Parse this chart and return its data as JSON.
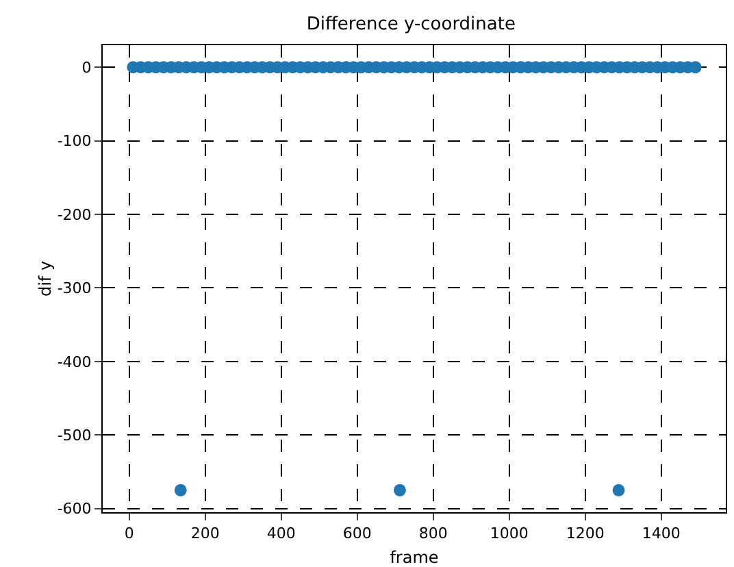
{
  "chart_data": {
    "type": "scatter",
    "title": "Difference y-coordinate",
    "xlabel": "frame",
    "ylabel": "dif y",
    "x": [
      10,
      30,
      50,
      70,
      90,
      110,
      130,
      135,
      150,
      170,
      190,
      210,
      230,
      250,
      270,
      290,
      310,
      330,
      350,
      370,
      390,
      410,
      430,
      450,
      470,
      490,
      510,
      530,
      550,
      570,
      590,
      610,
      630,
      650,
      670,
      690,
      710,
      712,
      730,
      750,
      770,
      790,
      810,
      830,
      850,
      870,
      890,
      910,
      930,
      950,
      970,
      990,
      1010,
      1030,
      1050,
      1070,
      1090,
      1110,
      1130,
      1150,
      1170,
      1190,
      1210,
      1230,
      1250,
      1270,
      1288,
      1290,
      1310,
      1330,
      1350,
      1370,
      1390,
      1410,
      1430,
      1450,
      1470,
      1490
    ],
    "values": [
      0,
      0,
      0,
      0,
      0,
      0,
      0,
      -575,
      0,
      0,
      0,
      0,
      0,
      0,
      0,
      0,
      0,
      0,
      0,
      0,
      0,
      0,
      0,
      0,
      0,
      0,
      0,
      0,
      0,
      0,
      0,
      0,
      0,
      0,
      0,
      0,
      0,
      -575,
      0,
      0,
      0,
      0,
      0,
      0,
      0,
      0,
      0,
      0,
      0,
      0,
      0,
      0,
      0,
      0,
      0,
      0,
      0,
      0,
      0,
      0,
      0,
      0,
      0,
      0,
      0,
      0,
      -575,
      0,
      0,
      0,
      0,
      0,
      0,
      0,
      0,
      0,
      0,
      0
    ],
    "color": "#1f77b4",
    "marker": "circle",
    "xlim": [
      -70,
      1570
    ],
    "ylim": [
      -605,
      30
    ],
    "xticks": [
      0,
      200,
      400,
      600,
      800,
      1000,
      1200,
      1400
    ],
    "yticks": [
      -600,
      -500,
      -400,
      -300,
      -200,
      -100,
      0
    ],
    "grid": true
  }
}
